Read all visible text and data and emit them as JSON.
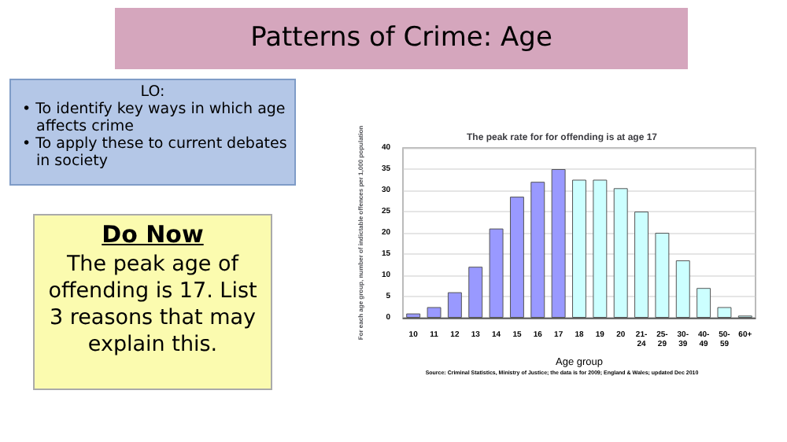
{
  "chart_data": {
    "type": "bar",
    "title": "The peak rate for for offending is at age 17",
    "xlabel": "Age group",
    "ylabel": "For each age group, number of indictable offences per 1,000 population",
    "categories": [
      "10",
      "11",
      "12",
      "13",
      "14",
      "15",
      "16",
      "17",
      "18",
      "19",
      "20",
      "21-24",
      "25-29",
      "30-39",
      "40-49",
      "50-59",
      "60+"
    ],
    "values": [
      1,
      2.5,
      6,
      12,
      21,
      28.5,
      32,
      35,
      32.5,
      32.5,
      30.5,
      25,
      20,
      13.5,
      7,
      2.5,
      0.5
    ],
    "colors": [
      "#9999ff",
      "#9999ff",
      "#9999ff",
      "#9999ff",
      "#9999ff",
      "#9999ff",
      "#9999ff",
      "#9999ff",
      "#ccffff",
      "#ccffff",
      "#ccffff",
      "#ccffff",
      "#ccffff",
      "#ccffff",
      "#ccffff",
      "#ccffff",
      "#ccffff"
    ],
    "ylim": [
      0,
      40
    ],
    "yticks": [
      0,
      5,
      10,
      15,
      20,
      25,
      30,
      35,
      40
    ],
    "grid": "y",
    "annotations": [
      "Patterns of Crime: Age",
      "LO:",
      "• To identify key ways in which age affects crime",
      "• To apply these to current debates in society",
      "Do Now",
      "The peak age of offending is 17. List 3 reasons that may explain this.",
      "Source: Criminal Statistics, Ministry of Justice; the data is for 2009; England & Wales; updated Dec 2010"
    ]
  }
}
